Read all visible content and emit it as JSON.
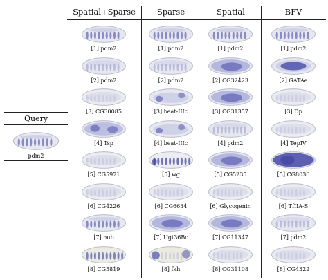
{
  "query": {
    "title": "Query",
    "gene": "pdm2",
    "pattern": "pdm2"
  },
  "columns": [
    {
      "header": "Spatial+Sparse",
      "results": [
        {
          "label": "[1] pdm2",
          "pattern": "pdm2"
        },
        {
          "label": "[2] pdm2",
          "pattern": "light"
        },
        {
          "label": "[3] CG30085",
          "pattern": "faint"
        },
        {
          "label": "[4] Tsp",
          "pattern": "tsp"
        },
        {
          "label": "[5] CG5971",
          "pattern": "faint"
        },
        {
          "label": "[6] CG4226",
          "pattern": "faint"
        },
        {
          "label": "[7] nub",
          "pattern": "pdm2"
        },
        {
          "label": "[8] CG5819",
          "pattern": "stripes"
        }
      ]
    },
    {
      "header": "Sparse",
      "results": [
        {
          "label": "[1] pdm2",
          "pattern": "pdm2"
        },
        {
          "label": "[2] pdm2",
          "pattern": "light"
        },
        {
          "label": "[3] beat-IIIc",
          "pattern": "beat"
        },
        {
          "label": "[4] beat-IIIc",
          "pattern": "beat"
        },
        {
          "label": "[5] wg",
          "pattern": "wg"
        },
        {
          "label": "[6] CG6634",
          "pattern": "faint"
        },
        {
          "label": "[7] Ugt36Bc",
          "pattern": "dark"
        },
        {
          "label": "[8] fkh",
          "pattern": "fkh"
        }
      ]
    },
    {
      "header": "Spatial",
      "results": [
        {
          "label": "[1] pdm2",
          "pattern": "pdm2"
        },
        {
          "label": "[2] CG32423",
          "pattern": "dark"
        },
        {
          "label": "[3] CG31357",
          "pattern": "dark"
        },
        {
          "label": "[4] pdm2",
          "pattern": "light"
        },
        {
          "label": "[5] CG5235",
          "pattern": "dark"
        },
        {
          "label": "[6] Glycogenin",
          "pattern": "faint"
        },
        {
          "label": "[7] CG11347",
          "pattern": "dark"
        },
        {
          "label": "[8] CG31108",
          "pattern": "faint"
        }
      ]
    },
    {
      "header": "BFV",
      "results": [
        {
          "label": "[1] pdm2",
          "pattern": "pdm2"
        },
        {
          "label": "[2] GATAe",
          "pattern": "gatae"
        },
        {
          "label": "[3] Dp",
          "pattern": "faint"
        },
        {
          "label": "[4] TepIV",
          "pattern": "faint"
        },
        {
          "label": "[5] CG8036",
          "pattern": "verydark"
        },
        {
          "label": "[6] TfIIA-S",
          "pattern": "faint"
        },
        {
          "label": "[7] pdm2",
          "pattern": "light"
        },
        {
          "label": "[8] CG4322",
          "pattern": "faint"
        }
      ]
    }
  ],
  "colors": {
    "embryo_fill": "#e6e7ef",
    "embryo_edge": "#b9bccb",
    "stain": "#3b3fa0",
    "stain_light": "#8a8fd0"
  }
}
